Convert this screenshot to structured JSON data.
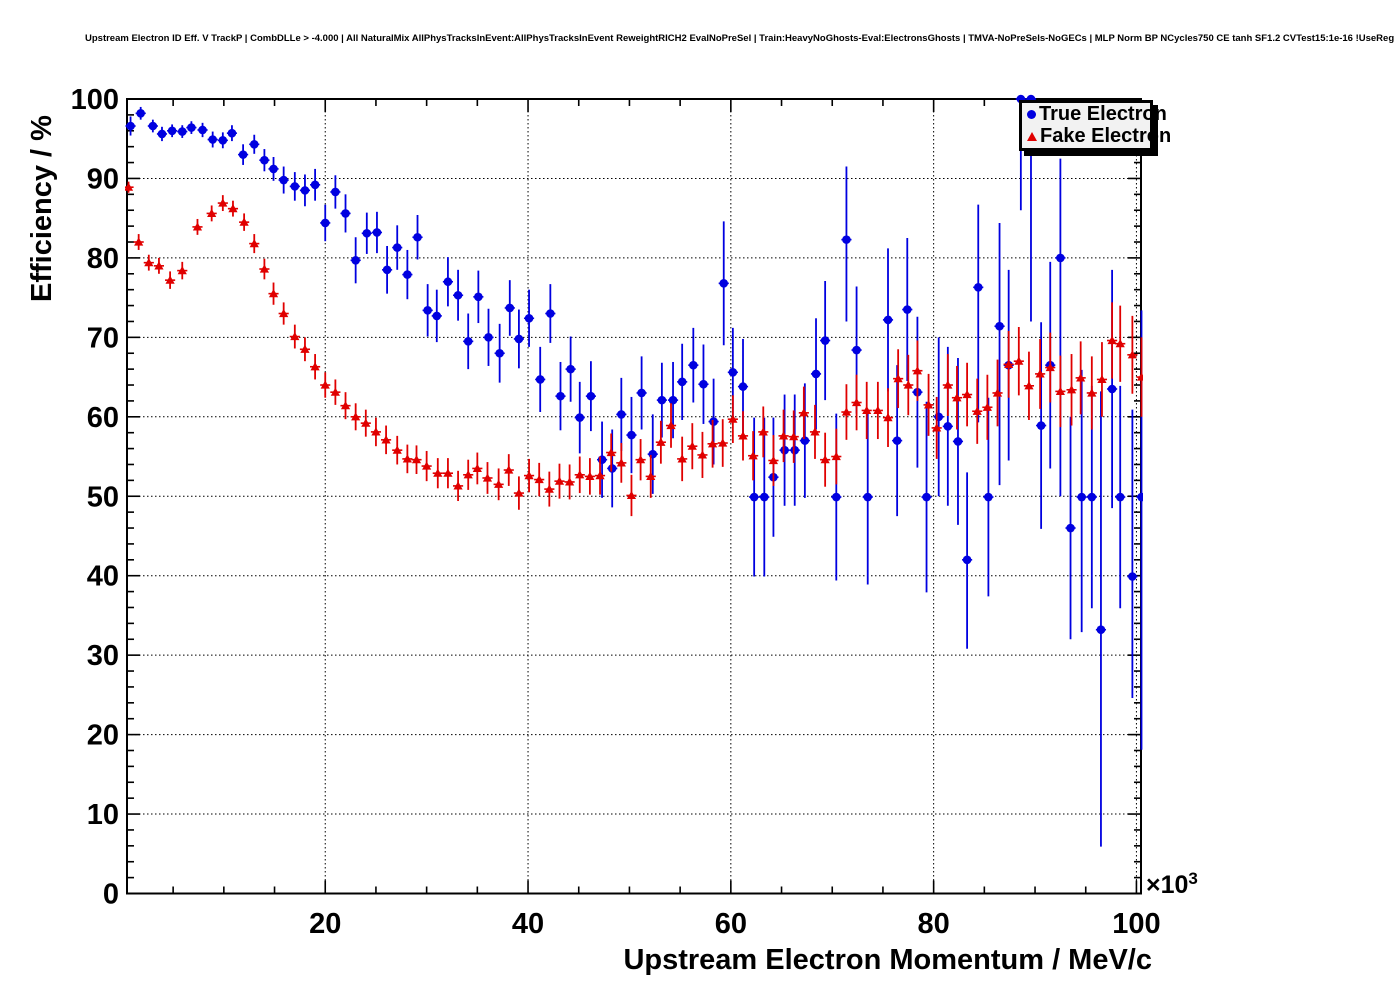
{
  "title": "Upstream Electron ID Eff. V TrackP | CombDLLe > -4.000 | All NaturalMix AllPhysTracksInEvent:AllPhysTracksInEvent ReweightRICH2 EvalNoPreSel | Train:HeavyNoGhosts-Eval:ElectronsGhosts | TMVA-NoPreSels-NoGECs | MLP Norm BP NCycles750 CE tanh SF1.2 CVTest15:1e-16 !UseReg",
  "legend": {
    "entries": [
      {
        "label": "True Electron",
        "marker": "circle",
        "color": "#0000e0"
      },
      {
        "label": "Fake Electron",
        "marker": "triangle",
        "color": "#e00000"
      }
    ]
  },
  "chart_data": {
    "type": "scatter",
    "title": "Upstream Electron ID Eff. V TrackP | CombDLLe > -4.000 | All NaturalMix AllPhysTracksInEvent:AllPhysTracksInEvent ReweightRICH2 EvalNoPreSel | Train:HeavyNoGhosts-Eval:ElectronsGhosts | TMVA-NoPreSels-NoGECs | MLP Norm BP NCycles750 CE tanh SF1.2 CVTest15:1e-16 !UseReg",
    "xlabel": "Upstream Electron Momentum / MeV/c",
    "ylabel": "Efficiency / %",
    "exponent": {
      "base": "×10",
      "power": "3"
    },
    "x_units_scale": 1000,
    "xlim": [
      0.45,
      100.45
    ],
    "ylim": [
      0,
      100
    ],
    "x_ticks": [
      20,
      40,
      60,
      80,
      100
    ],
    "y_ticks": [
      0,
      10,
      20,
      30,
      40,
      50,
      60,
      70,
      80,
      90,
      100
    ],
    "x_minor_step": 5,
    "y_minor_step": 2,
    "grid": true,
    "bin_half_width": 0.5,
    "series": [
      {
        "name": "True Electron",
        "color": "#0000e0",
        "marker": "circle",
        "points": [
          [
            0.8,
            96.6,
            1.2
          ],
          [
            1.8,
            98.2,
            0.8
          ],
          [
            3.0,
            96.6,
            0.8
          ],
          [
            3.9,
            95.6,
            0.9
          ],
          [
            4.9,
            96.0,
            0.8
          ],
          [
            5.9,
            95.9,
            0.8
          ],
          [
            6.8,
            96.4,
            0.8
          ],
          [
            7.9,
            96.1,
            0.9
          ],
          [
            8.9,
            94.9,
            1.0
          ],
          [
            9.9,
            94.8,
            1.0
          ],
          [
            10.8,
            95.7,
            1.0
          ],
          [
            11.9,
            93.0,
            1.3
          ],
          [
            13.0,
            94.3,
            1.2
          ],
          [
            14.0,
            92.3,
            1.4
          ],
          [
            14.9,
            91.2,
            1.5
          ],
          [
            15.9,
            89.8,
            1.7
          ],
          [
            17.0,
            89.0,
            1.8
          ],
          [
            18.0,
            88.5,
            2.0
          ],
          [
            19.0,
            89.2,
            2.0
          ],
          [
            20.0,
            84.4,
            2.3
          ],
          [
            21.0,
            88.3,
            2.1
          ],
          [
            22.0,
            85.6,
            2.4
          ],
          [
            23.0,
            79.7,
            2.9
          ],
          [
            24.1,
            83.1,
            2.6
          ],
          [
            25.1,
            83.2,
            2.6
          ],
          [
            26.1,
            78.5,
            3.0
          ],
          [
            27.1,
            81.3,
            2.8
          ],
          [
            28.1,
            77.9,
            3.1
          ],
          [
            29.1,
            82.6,
            2.8
          ],
          [
            30.1,
            73.4,
            3.3
          ],
          [
            31.0,
            72.7,
            3.3
          ],
          [
            32.1,
            77.0,
            3.1
          ],
          [
            33.1,
            75.3,
            3.2
          ],
          [
            34.1,
            69.5,
            3.5
          ],
          [
            35.1,
            75.1,
            3.3
          ],
          [
            36.1,
            70.0,
            3.6
          ],
          [
            37.2,
            68.0,
            3.7
          ],
          [
            38.2,
            73.7,
            3.5
          ],
          [
            39.1,
            69.8,
            3.7
          ],
          [
            40.1,
            72.4,
            3.6
          ],
          [
            41.2,
            64.7,
            4.1
          ],
          [
            42.2,
            73.0,
            3.7
          ],
          [
            43.2,
            62.6,
            4.3
          ],
          [
            44.2,
            66.0,
            4.1
          ],
          [
            45.1,
            59.9,
            4.5
          ],
          [
            46.2,
            62.6,
            4.4
          ],
          [
            47.3,
            54.6,
            4.8
          ],
          [
            48.3,
            53.5,
            4.9
          ],
          [
            49.2,
            60.3,
            4.6
          ],
          [
            50.2,
            57.7,
            4.8
          ],
          [
            51.2,
            63.0,
            4.6
          ],
          [
            52.3,
            55.3,
            5.0
          ],
          [
            53.2,
            62.1,
            4.7
          ],
          [
            54.3,
            62.1,
            4.8
          ],
          [
            55.2,
            64.4,
            4.8
          ],
          [
            56.3,
            66.5,
            4.7
          ],
          [
            57.3,
            64.1,
            5.0
          ],
          [
            58.3,
            59.4,
            5.4
          ],
          [
            59.3,
            76.8,
            7.8
          ],
          [
            60.2,
            65.6,
            5.6
          ],
          [
            61.2,
            63.8,
            6.0
          ],
          [
            62.3,
            49.9,
            10.0
          ],
          [
            63.3,
            49.9,
            10.0
          ],
          [
            64.2,
            52.4,
            7.5
          ],
          [
            65.3,
            55.8,
            7.0
          ],
          [
            66.3,
            55.8,
            7.0
          ],
          [
            67.3,
            57.0,
            7.2
          ],
          [
            68.4,
            65.4,
            7.0
          ],
          [
            69.3,
            69.6,
            7.5
          ],
          [
            70.4,
            49.9,
            10.5
          ],
          [
            71.4,
            82.3,
            10.3,
            9.2
          ],
          [
            72.4,
            68.4,
            8.0
          ],
          [
            73.5,
            49.9,
            11.0
          ],
          [
            75.5,
            72.2,
            9.0
          ],
          [
            76.4,
            57.0,
            9.5
          ],
          [
            77.4,
            73.5,
            9.0
          ],
          [
            78.4,
            63.1,
            9.5
          ],
          [
            79.3,
            49.9,
            12.0
          ],
          [
            80.5,
            60.0,
            10.0
          ],
          [
            81.4,
            58.8,
            10.0
          ],
          [
            82.4,
            56.9,
            10.5
          ],
          [
            83.3,
            42.0,
            11.2,
            11.0
          ],
          [
            84.4,
            76.3,
            17.0,
            10.4
          ],
          [
            85.4,
            49.9,
            12.5
          ],
          [
            86.5,
            71.4,
            20.0,
            13.0
          ],
          [
            87.4,
            66.5,
            12.0
          ],
          [
            88.6,
            100.0,
            14.0,
            0.0
          ],
          [
            89.6,
            100.0,
            28.0,
            0.0
          ],
          [
            90.6,
            58.9,
            13.0
          ],
          [
            91.5,
            66.5,
            13.0
          ],
          [
            92.5,
            80.0,
            30.0,
            12.5
          ],
          [
            93.5,
            46.0,
            14.0
          ],
          [
            94.6,
            49.9,
            17.0,
            16.0
          ],
          [
            95.6,
            49.9,
            14.0
          ],
          [
            96.5,
            33.2,
            27.3,
            30.0
          ],
          [
            97.6,
            63.5,
            15.0
          ],
          [
            98.4,
            49.9,
            14.0
          ],
          [
            99.6,
            39.9,
            15.3,
            21.0
          ],
          [
            100.5,
            49.9,
            31.8,
            23.5
          ]
        ]
      },
      {
        "name": "Fake Electron",
        "color": "#e00000",
        "marker": "triangle",
        "points": [
          [
            0.6,
            88.9,
            0.7
          ],
          [
            1.6,
            82.0,
            1.0
          ],
          [
            2.6,
            79.4,
            1.0
          ],
          [
            3.6,
            79.0,
            1.0
          ],
          [
            4.7,
            77.2,
            1.1
          ],
          [
            5.9,
            78.4,
            1.1
          ],
          [
            7.4,
            83.9,
            1.0
          ],
          [
            8.8,
            85.6,
            1.0
          ],
          [
            9.9,
            86.9,
            1.0
          ],
          [
            10.9,
            86.2,
            1.0
          ],
          [
            12.0,
            84.5,
            1.1
          ],
          [
            13.0,
            81.8,
            1.2
          ],
          [
            14.0,
            78.6,
            1.3
          ],
          [
            14.9,
            75.5,
            1.4
          ],
          [
            15.9,
            73.0,
            1.4
          ],
          [
            17.0,
            70.1,
            1.5
          ],
          [
            18.0,
            68.5,
            1.5
          ],
          [
            19.0,
            66.3,
            1.6
          ],
          [
            20.0,
            64.0,
            1.6
          ],
          [
            21.0,
            63.1,
            1.6
          ],
          [
            22.0,
            61.4,
            1.7
          ],
          [
            23.0,
            60.0,
            1.7
          ],
          [
            24.0,
            59.2,
            1.7
          ],
          [
            25.0,
            58.1,
            1.8
          ],
          [
            26.0,
            57.1,
            1.8
          ],
          [
            27.1,
            55.8,
            1.8
          ],
          [
            28.1,
            54.7,
            1.8
          ],
          [
            29.0,
            54.6,
            1.8
          ],
          [
            30.0,
            53.8,
            1.9
          ],
          [
            31.1,
            52.9,
            1.9
          ],
          [
            32.1,
            52.9,
            1.9
          ],
          [
            33.1,
            51.3,
            1.9
          ],
          [
            34.1,
            52.7,
            1.9
          ],
          [
            35.0,
            53.5,
            2.0
          ],
          [
            36.0,
            52.3,
            2.0
          ],
          [
            37.1,
            51.5,
            2.0
          ],
          [
            38.1,
            53.3,
            2.0
          ],
          [
            39.1,
            50.4,
            2.1
          ],
          [
            40.1,
            52.6,
            2.1
          ],
          [
            41.1,
            52.1,
            2.1
          ],
          [
            42.1,
            50.9,
            2.2
          ],
          [
            43.1,
            51.9,
            2.2
          ],
          [
            44.1,
            51.8,
            2.2
          ],
          [
            45.1,
            52.7,
            2.3
          ],
          [
            46.1,
            52.5,
            2.3
          ],
          [
            47.1,
            52.6,
            2.4
          ],
          [
            48.2,
            55.5,
            2.4
          ],
          [
            49.2,
            54.2,
            2.5
          ],
          [
            50.2,
            50.1,
            2.6
          ],
          [
            51.1,
            54.6,
            2.6
          ],
          [
            52.1,
            52.5,
            2.7
          ],
          [
            53.1,
            56.8,
            2.7
          ],
          [
            54.1,
            58.9,
            2.8
          ],
          [
            55.2,
            54.7,
            2.8
          ],
          [
            56.2,
            56.3,
            2.9
          ],
          [
            57.2,
            55.2,
            2.9
          ],
          [
            58.2,
            56.6,
            3.0
          ],
          [
            59.2,
            56.7,
            3.0
          ],
          [
            60.2,
            59.7,
            3.0
          ],
          [
            61.2,
            57.6,
            3.1
          ],
          [
            62.2,
            55.1,
            3.1
          ],
          [
            63.2,
            58.1,
            3.2
          ],
          [
            64.2,
            54.5,
            3.2
          ],
          [
            65.2,
            57.6,
            3.3
          ],
          [
            66.2,
            57.5,
            3.3
          ],
          [
            67.2,
            60.5,
            3.3
          ],
          [
            68.3,
            58.1,
            3.4
          ],
          [
            69.3,
            54.6,
            3.4
          ],
          [
            70.4,
            55.0,
            3.5
          ],
          [
            71.4,
            60.6,
            3.5
          ],
          [
            72.4,
            61.8,
            3.5
          ],
          [
            73.4,
            60.8,
            3.6
          ],
          [
            74.5,
            60.8,
            3.6
          ],
          [
            75.5,
            59.9,
            3.7
          ],
          [
            76.5,
            64.8,
            3.7
          ],
          [
            77.5,
            64.0,
            3.8
          ],
          [
            78.4,
            65.8,
            3.8
          ],
          [
            79.5,
            61.5,
            3.9
          ],
          [
            80.3,
            58.6,
            3.9
          ],
          [
            81.4,
            64.0,
            3.9
          ],
          [
            82.3,
            62.4,
            4.0
          ],
          [
            83.3,
            62.8,
            4.0
          ],
          [
            84.3,
            60.7,
            4.1
          ],
          [
            85.3,
            61.2,
            4.1
          ],
          [
            86.3,
            63.0,
            4.2
          ],
          [
            87.4,
            66.6,
            4.2
          ],
          [
            88.4,
            67.0,
            4.3
          ],
          [
            89.4,
            63.9,
            4.3
          ],
          [
            90.5,
            65.4,
            4.4
          ],
          [
            91.5,
            66.2,
            4.4
          ],
          [
            92.5,
            63.2,
            4.5
          ],
          [
            93.6,
            63.4,
            4.5
          ],
          [
            94.5,
            64.9,
            4.6
          ],
          [
            95.6,
            63.0,
            4.6
          ],
          [
            96.6,
            64.7,
            4.7
          ],
          [
            97.6,
            69.6,
            4.8
          ],
          [
            98.4,
            69.2,
            4.8
          ],
          [
            99.6,
            67.8,
            4.9
          ],
          [
            100.5,
            65.0,
            5.0
          ]
        ]
      }
    ]
  }
}
